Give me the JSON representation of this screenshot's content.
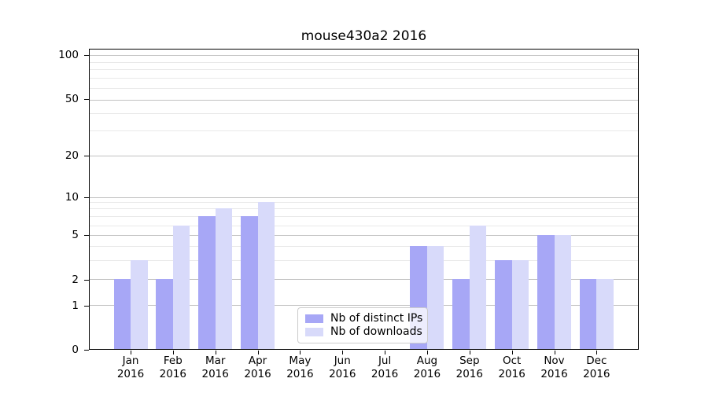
{
  "title": "mouse430a2 2016",
  "chart_data": {
    "type": "bar",
    "title": "mouse430a2 2016",
    "categories": [
      "Jan 2016",
      "Feb 2016",
      "Mar 2016",
      "Apr 2016",
      "May 2016",
      "Jun 2016",
      "Jul 2016",
      "Aug 2016",
      "Sep 2016",
      "Oct 2016",
      "Nov 2016",
      "Dec 2016"
    ],
    "series": [
      {
        "name": "Nb of distinct IPs",
        "color": "#a7a7f6",
        "values": [
          2,
          2,
          7,
          7,
          0,
          0,
          0,
          4,
          2,
          3,
          5,
          2
        ]
      },
      {
        "name": "Nb of downloads",
        "color": "#d8dafa",
        "values": [
          3,
          6,
          8,
          9,
          0,
          0,
          0,
          4,
          6,
          3,
          5,
          2
        ]
      }
    ],
    "xlabel": "",
    "ylabel": "",
    "y_axis": {
      "scale": "log-like",
      "range": [
        0,
        100
      ],
      "tick_values": [
        100,
        50,
        20,
        10,
        5,
        2,
        1,
        0
      ],
      "tick_labels": [
        "100",
        "50",
        "20",
        "10",
        "5",
        "2",
        "1",
        "0"
      ],
      "minor_gridline_values": [
        90,
        80,
        70,
        60,
        40,
        30,
        9,
        8,
        7,
        6,
        4,
        3
      ]
    },
    "grid": true,
    "legend_position": "bottom-center-inside"
  },
  "colors": {
    "bar_distinct_ips": "#a7a7f6",
    "bar_downloads": "#d8dafa",
    "grid_major": "#c2c2c2",
    "grid_minor": "#e9e9e9"
  }
}
